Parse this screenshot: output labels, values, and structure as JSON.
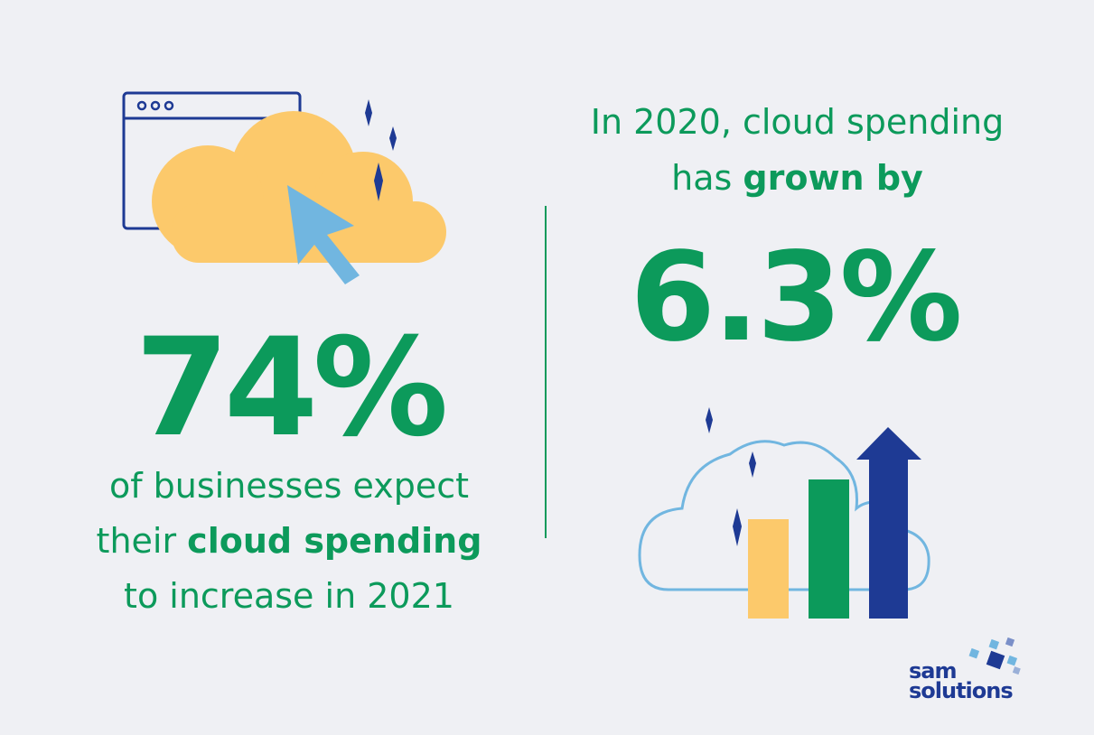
{
  "left": {
    "big_stat": "74%",
    "caption_line1": "of businesses expect",
    "caption_line2_pre": "their ",
    "caption_line2_bold": "cloud spending",
    "caption_line3": "to increase in 2021"
  },
  "right": {
    "intro_line1": "In 2020, cloud spending",
    "intro_line2_pre": "has ",
    "intro_line2_bold": "grown by",
    "big_stat": "6.3%"
  },
  "logo": {
    "line1": "sam",
    "line2": "solutions"
  },
  "icons": {
    "left_illustration": "browser-cloud-cursor-icon",
    "right_illustration": "cloud-growth-bars-icon",
    "logo_mark": "squares-mark-icon"
  },
  "colors": {
    "background": "#eff0f4",
    "green": "#0c9a5b",
    "yellow": "#fcc96b",
    "light_blue": "#71b6e0",
    "navy": "#1e3a94"
  }
}
